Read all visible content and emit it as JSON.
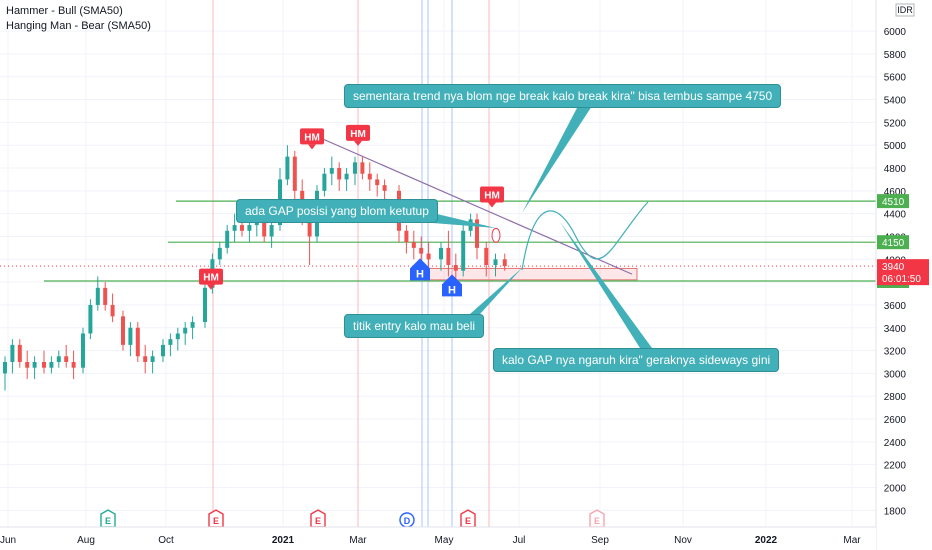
{
  "legend": {
    "items": [
      "Hammer - Bull (SMA50)",
      "Hanging Man - Bear (SMA50)"
    ]
  },
  "currency": "IDR",
  "chart_data": {
    "type": "candlestick",
    "x_ticks": [
      "Jun",
      "Aug",
      "Oct",
      "2021",
      "Mar",
      "May",
      "Jul",
      "Sep",
      "Nov",
      "2022",
      "Mar"
    ],
    "y_ticks": [
      1800,
      2000,
      2200,
      2400,
      2600,
      2800,
      3000,
      3200,
      3400,
      3600,
      3800,
      4000,
      4200,
      4400,
      4600,
      4800,
      5000,
      5200,
      5400,
      5600,
      5800,
      6000
    ],
    "ylim": [
      1660,
      6220
    ],
    "series": [
      {
        "month": "Jun 2020",
        "ohlc": [
          [
            3000,
            3150,
            2850,
            3100
          ],
          [
            3100,
            3300,
            3000,
            3250
          ],
          [
            3250,
            3300,
            3050,
            3100
          ],
          [
            3100,
            3200,
            2950,
            3050
          ],
          [
            3050,
            3150,
            2950,
            3100
          ]
        ]
      },
      {
        "month": "Jul 2020",
        "ohlc": [
          [
            3100,
            3200,
            3000,
            3050
          ],
          [
            3050,
            3150,
            3000,
            3100
          ],
          [
            3100,
            3200,
            3050,
            3150
          ],
          [
            3150,
            3250,
            3050,
            3100
          ],
          [
            3100,
            3200,
            2950,
            3050
          ]
        ]
      },
      {
        "month": "Aug 2020",
        "ohlc": [
          [
            3050,
            3400,
            3000,
            3350
          ],
          [
            3350,
            3650,
            3300,
            3600
          ],
          [
            3600,
            3850,
            3550,
            3750
          ],
          [
            3750,
            3800,
            3550,
            3600
          ],
          [
            3600,
            3700,
            3450,
            3500
          ]
        ]
      },
      {
        "month": "Sep 2020",
        "ohlc": [
          [
            3500,
            3550,
            3200,
            3250
          ],
          [
            3250,
            3450,
            3150,
            3400
          ],
          [
            3400,
            3450,
            3100,
            3150
          ],
          [
            3150,
            3250,
            3000,
            3100
          ],
          [
            3100,
            3200,
            3000,
            3150
          ]
        ]
      },
      {
        "month": "Oct 2020",
        "ohlc": [
          [
            3150,
            3300,
            3100,
            3250
          ],
          [
            3250,
            3350,
            3150,
            3300
          ],
          [
            3300,
            3400,
            3200,
            3350
          ],
          [
            3350,
            3450,
            3250,
            3400
          ],
          [
            3400,
            3500,
            3300,
            3450
          ]
        ]
      },
      {
        "month": "Nov 2020",
        "ohlc": [
          [
            3450,
            3800,
            3400,
            3750
          ],
          [
            3750,
            4050,
            3700,
            4000
          ],
          [
            4000,
            4150,
            3950,
            4100
          ],
          [
            4100,
            4300,
            4050,
            4250
          ],
          [
            4250,
            4400,
            4150,
            4300
          ]
        ]
      },
      {
        "month": "Dec 2020",
        "ohlc": [
          [
            4300,
            4450,
            4200,
            4250
          ],
          [
            4250,
            4350,
            4150,
            4300
          ],
          [
            4300,
            4400,
            4200,
            4350
          ],
          [
            4350,
            4400,
            4150,
            4200
          ],
          [
            4200,
            4350,
            4100,
            4300
          ]
        ]
      },
      {
        "month": "Jan 2021",
        "ohlc": [
          [
            4300,
            4800,
            4250,
            4700
          ],
          [
            4700,
            5000,
            4650,
            4900
          ],
          [
            4900,
            4950,
            4500,
            4600
          ],
          [
            4600,
            4700,
            4300,
            4400
          ],
          [
            4400,
            4500,
            3950,
            4200
          ]
        ]
      },
      {
        "month": "Feb 2021",
        "ohlc": [
          [
            4200,
            4650,
            4150,
            4600
          ],
          [
            4600,
            4800,
            4550,
            4750
          ],
          [
            4750,
            4900,
            4650,
            4800
          ],
          [
            4800,
            4850,
            4600,
            4700
          ],
          [
            4700,
            4800,
            4600,
            4750
          ]
        ]
      },
      {
        "month": "Mar 2021",
        "ohlc": [
          [
            4750,
            4900,
            4650,
            4850
          ],
          [
            4850,
            4900,
            4700,
            4750
          ],
          [
            4750,
            4850,
            4600,
            4700
          ],
          [
            4700,
            4750,
            4550,
            4650
          ],
          [
            4650,
            4700,
            4500,
            4600
          ]
        ]
      },
      {
        "month": "Apr 2021",
        "ohlc": [
          [
            4600,
            4650,
            4150,
            4250
          ],
          [
            4250,
            4300,
            4050,
            4150
          ],
          [
            4150,
            4250,
            4000,
            4100
          ],
          [
            4100,
            4200,
            3950,
            4050
          ],
          [
            4050,
            4150,
            3900,
            4000
          ]
        ]
      },
      {
        "month": "May 2021",
        "ohlc": [
          [
            4000,
            4150,
            3900,
            4100
          ],
          [
            4100,
            4250,
            3850,
            3950
          ],
          [
            3950,
            4050,
            3800,
            3900
          ],
          [
            3900,
            4300,
            3850,
            4250
          ],
          [
            4250,
            4400,
            4200,
            4350
          ]
        ]
      },
      {
        "month": "Jun 2021",
        "ohlc": [
          [
            4350,
            4400,
            4000,
            4100
          ],
          [
            4100,
            4150,
            3850,
            3950
          ],
          [
            3950,
            4050,
            3850,
            4000
          ],
          [
            4000,
            4050,
            3900,
            3940
          ]
        ]
      }
    ],
    "horizontal_levels": [
      {
        "value": 4510,
        "label": "4510"
      },
      {
        "value": 4150,
        "label": "4150"
      },
      {
        "value": 3810,
        "label": "3810"
      }
    ],
    "last_price": {
      "value": 3940,
      "label": "3940",
      "countdown": "06:01:50"
    },
    "markers": [
      {
        "label": "HM",
        "type": "hanging-man",
        "color": "#f23645",
        "date": "Nov 2020"
      },
      {
        "label": "HM",
        "type": "hanging-man",
        "color": "#f23645",
        "date": "Jan 2021"
      },
      {
        "label": "HM",
        "type": "hanging-man",
        "color": "#f23645",
        "date": "Mar 2021"
      },
      {
        "label": "HM",
        "type": "hanging-man",
        "color": "#f23645",
        "date": "Jun 2021"
      },
      {
        "label": "H",
        "type": "hammer",
        "color": "#2962ff",
        "date": "Apr 2021"
      },
      {
        "label": "H",
        "type": "hammer",
        "color": "#2962ff",
        "date": "May 2021"
      }
    ],
    "event_badges": [
      {
        "label": "E",
        "color": "#22ab94",
        "month": "Aug 2020"
      },
      {
        "label": "E",
        "color": "#f23645",
        "month": "Nov 2020"
      },
      {
        "label": "E",
        "color": "#f23645",
        "month": "Feb 2021"
      },
      {
        "label": "D",
        "color": "#2962ff",
        "month": "Apr 2021"
      },
      {
        "label": "E",
        "color": "#f23645",
        "month": "May 2021"
      },
      {
        "label": "E",
        "color": "#f7a5ad",
        "month": "Aug 2021"
      }
    ],
    "annotations": [
      {
        "text": "sementara trend nya blom nge break kalo break kira\" bisa tembus sampe 4750"
      },
      {
        "text": "ada GAP posisi yang blom ketutup"
      },
      {
        "text": "titik entry kalo mau beli"
      },
      {
        "text": "kalo GAP nya ngaruh kira\" geraknya sideways gini"
      }
    ],
    "colors": {
      "up": "#26a69a",
      "down": "#ef5350",
      "level": "#4caf50",
      "callout": "#42b0b8",
      "trendline": "#8e6ea8",
      "price": "#f23645"
    }
  }
}
